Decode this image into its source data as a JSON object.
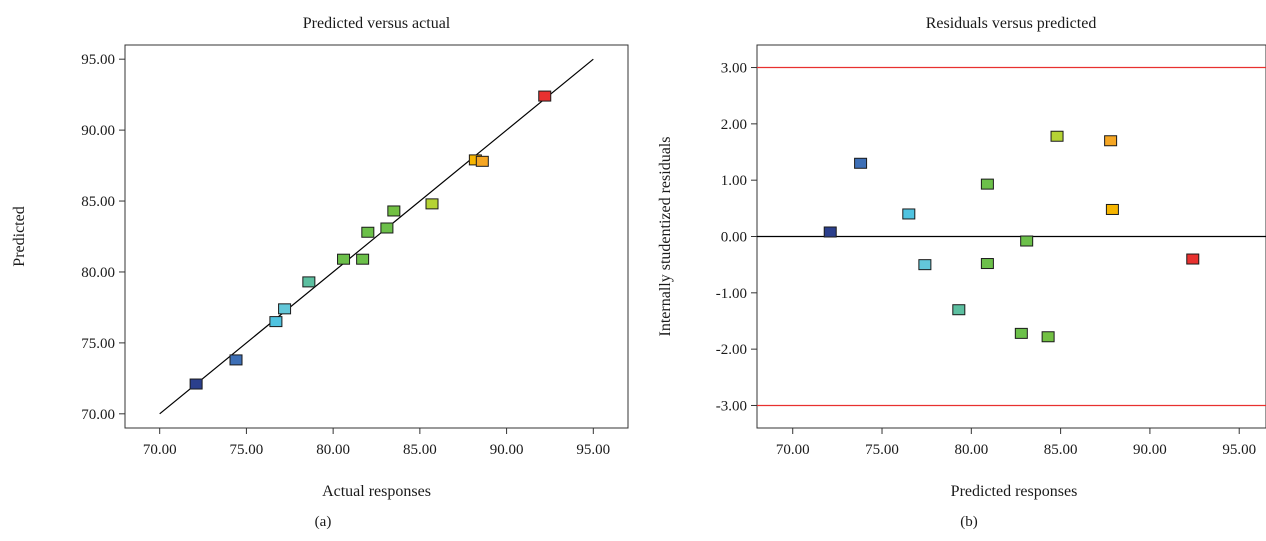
{
  "chart_data": [
    {
      "type": "scatter",
      "panel": "(a)",
      "title": "Predicted versus actual",
      "xlabel": "Actual responses",
      "ylabel": "Predicted",
      "xlim": [
        68.0,
        97.0
      ],
      "ylim": [
        69.0,
        96.0
      ],
      "xticks": [
        70,
        75,
        80,
        85,
        90,
        95
      ],
      "yticks": [
        70,
        75,
        80,
        85,
        90,
        95
      ],
      "xtick_labels": [
        "70.00",
        "75.00",
        "80.00",
        "85.00",
        "90.00",
        "95.00"
      ],
      "ytick_labels": [
        "70.00",
        "75.00",
        "80.00",
        "85.00",
        "90.00",
        "95.00"
      ],
      "grid": false,
      "reference_line": {
        "from": [
          70,
          70
        ],
        "to": [
          95,
          95
        ],
        "color": "#000000"
      },
      "points": [
        {
          "x": 72.1,
          "y": 72.1,
          "color": "#2b3f8c"
        },
        {
          "x": 74.4,
          "y": 73.8,
          "color": "#3d6fb6"
        },
        {
          "x": 76.7,
          "y": 76.5,
          "color": "#4fc3e0"
        },
        {
          "x": 77.2,
          "y": 77.4,
          "color": "#63c7d9"
        },
        {
          "x": 78.6,
          "y": 79.3,
          "color": "#5cbfa0"
        },
        {
          "x": 80.6,
          "y": 80.9,
          "color": "#6cc04a"
        },
        {
          "x": 81.7,
          "y": 80.9,
          "color": "#6cc04a"
        },
        {
          "x": 82.0,
          "y": 82.8,
          "color": "#6cc04a"
        },
        {
          "x": 83.1,
          "y": 83.1,
          "color": "#6cc04a"
        },
        {
          "x": 83.5,
          "y": 84.3,
          "color": "#72c043"
        },
        {
          "x": 85.7,
          "y": 84.8,
          "color": "#b5d334"
        },
        {
          "x": 88.2,
          "y": 87.9,
          "color": "#f6b500"
        },
        {
          "x": 88.6,
          "y": 87.8,
          "color": "#f5a623"
        },
        {
          "x": 92.2,
          "y": 92.4,
          "color": "#e8312f"
        }
      ]
    },
    {
      "type": "scatter",
      "panel": "(b)",
      "title": "Residuals versus predicted",
      "xlabel": "Predicted responses",
      "ylabel": "Internally studentized residuals",
      "xlim": [
        68.0,
        96.5
      ],
      "ylim": [
        -3.4,
        3.4
      ],
      "xticks": [
        70,
        75,
        80,
        85,
        90,
        95
      ],
      "yticks": [
        -3,
        -2,
        -1,
        0,
        1,
        2,
        3
      ],
      "xtick_labels": [
        "70.00",
        "75.00",
        "80.00",
        "85.00",
        "90.00",
        "95.00"
      ],
      "ytick_labels": [
        "-3.00",
        "-2.00",
        "-1.00",
        "0.00",
        "1.00",
        "2.00",
        "3.00"
      ],
      "grid": false,
      "hlines": [
        {
          "y": 3,
          "color": "#e8312f"
        },
        {
          "y": 0,
          "color": "#000000"
        },
        {
          "y": -3,
          "color": "#e8312f"
        }
      ],
      "points": [
        {
          "x": 72.1,
          "y": 0.08,
          "color": "#2b3f8c"
        },
        {
          "x": 73.8,
          "y": 1.3,
          "color": "#3d6fb6"
        },
        {
          "x": 76.5,
          "y": 0.4,
          "color": "#4fc3e0"
        },
        {
          "x": 77.4,
          "y": -0.5,
          "color": "#63c7d9"
        },
        {
          "x": 79.3,
          "y": -1.3,
          "color": "#5cbfa0"
        },
        {
          "x": 80.9,
          "y": 0.93,
          "color": "#6cc04a"
        },
        {
          "x": 80.9,
          "y": -0.48,
          "color": "#6cc04a"
        },
        {
          "x": 82.8,
          "y": -1.72,
          "color": "#6cc04a"
        },
        {
          "x": 83.1,
          "y": -0.08,
          "color": "#6cc04a"
        },
        {
          "x": 84.3,
          "y": -1.78,
          "color": "#72c043"
        },
        {
          "x": 84.8,
          "y": 1.78,
          "color": "#b5d334"
        },
        {
          "x": 87.8,
          "y": 1.7,
          "color": "#f5a623"
        },
        {
          "x": 87.9,
          "y": 0.48,
          "color": "#f6b500"
        },
        {
          "x": 92.4,
          "y": -0.4,
          "color": "#e8312f"
        }
      ]
    }
  ],
  "captions": [
    "(a)",
    "(b)"
  ]
}
